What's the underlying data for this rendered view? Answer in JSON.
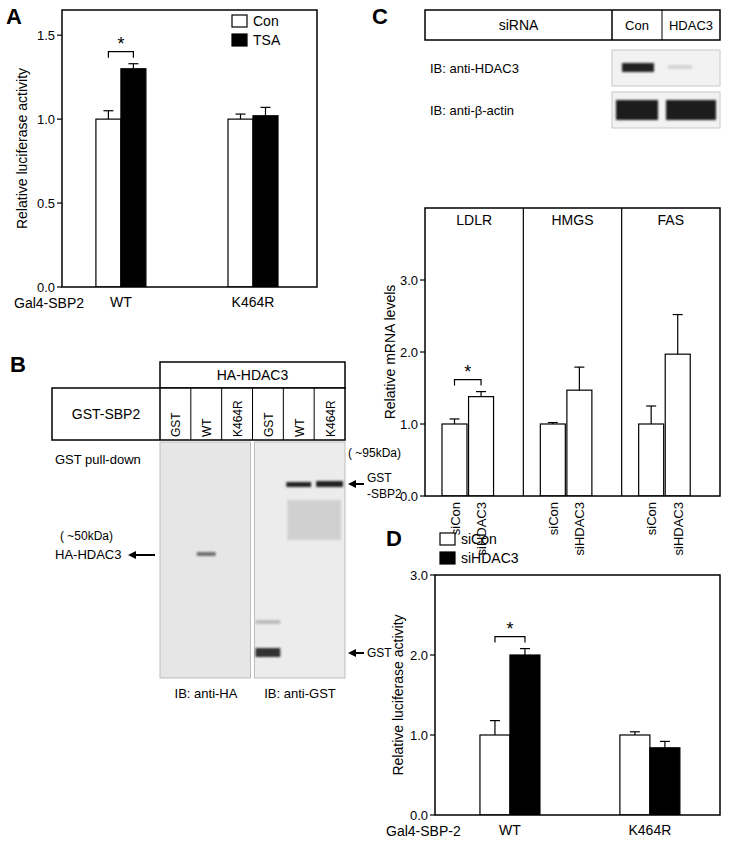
{
  "panel_labels": [
    "A",
    "B",
    "C",
    "D"
  ],
  "chart_data": [
    {
      "type": "bar",
      "x_label": "Gal4-SBP2",
      "y_label": "Relative luciferase activity",
      "categories": [
        "WT",
        "K464R"
      ],
      "series": [
        {
          "name": "Con",
          "color": "#ffffff",
          "values": [
            1.0,
            1.0
          ],
          "errors": [
            0.05,
            0.03
          ]
        },
        {
          "name": "TSA",
          "color": "#000000",
          "values": [
            1.3,
            1.02
          ],
          "errors": [
            0.03,
            0.05
          ]
        }
      ],
      "ylim": [
        0,
        1.65
      ],
      "yticks": [
        {
          "value": 0,
          "label": "0.0"
        },
        0.5,
        {
          "value": 1,
          "label": "1.0"
        },
        1.5
      ],
      "legend": "upper right",
      "annotations": [
        "*"
      ]
    },
    {
      "type": "bar",
      "y_label": "Relative mRNA levels",
      "groups": [
        "LDLR",
        "HMGS",
        "FAS"
      ],
      "categories": [
        "siCon",
        "siHDAC3",
        "siCon",
        "siHDAC3",
        "siCon",
        "siHDAC3"
      ],
      "values": [
        1.0,
        1.38,
        1.0,
        1.47,
        1.0,
        1.97
      ],
      "errors": [
        0.07,
        0.07,
        0.02,
        0.32,
        0.25,
        0.55
      ],
      "color": "#ffffff",
      "ylim": [
        0,
        4.0
      ],
      "yticks": [
        {
          "value": 0,
          "label": "0.0"
        },
        {
          "value": 1,
          "label": "1.0"
        },
        {
          "value": 2,
          "label": "2.0"
        },
        {
          "value": 3,
          "label": "3.0"
        }
      ],
      "annotations": [
        "*"
      ]
    },
    {
      "type": "bar",
      "x_label": "Gal4-SBP-2",
      "y_label": "Relative luciferase activity",
      "categories": [
        "WT",
        "K464R"
      ],
      "series": [
        {
          "name": "siCon",
          "color": "#ffffff",
          "values": [
            1.0,
            1.0
          ],
          "errors": [
            0.18,
            0.04
          ]
        },
        {
          "name": "siHDAC3",
          "color": "#000000",
          "values": [
            2.0,
            0.84
          ],
          "errors": [
            0.08,
            0.08
          ]
        }
      ],
      "ylim": [
        0,
        3.0
      ],
      "yticks": [
        {
          "value": 0,
          "label": "0.0"
        },
        {
          "value": 1,
          "label": "1.0"
        },
        {
          "value": 2,
          "label": "2.0"
        },
        {
          "value": 3,
          "label": "3.0"
        }
      ],
      "legend": "upper left",
      "annotations": [
        "*"
      ]
    }
  ],
  "blots": {
    "B": {
      "header": "HA-HDAC3",
      "row_label": "GST-SBP2",
      "lanes": [
        "GST",
        "WT",
        "K464R",
        "GST",
        "WT",
        "K464R"
      ],
      "side_label": "GST pull-down",
      "size_left": "( ~50kDa)",
      "band_left": "HA-HDAC3",
      "size_right": "( ~95kDa)",
      "band_right_top": [
        "GST",
        "-SBP2"
      ],
      "band_right_bottom": "GST",
      "ib_left": "IB: anti-HA",
      "ib_right": "IB: anti-GST"
    },
    "C": {
      "header": "siRNA",
      "lanes": [
        "Con",
        "HDAC3"
      ],
      "rows": [
        "IB: anti-HDAC3",
        "IB: anti-β-actin"
      ]
    }
  }
}
